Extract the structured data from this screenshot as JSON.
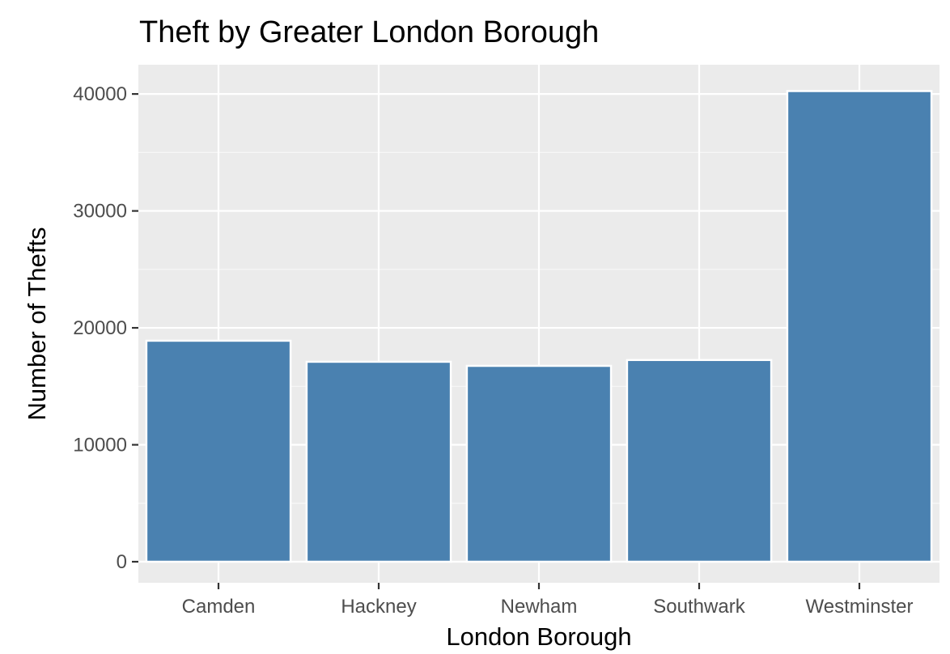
{
  "chart_data": {
    "type": "bar",
    "title": "Theft by Greater London Borough",
    "xlabel": "London Borough",
    "ylabel": "Number of Thefts",
    "categories": [
      "Camden",
      "Hackney",
      "Newham",
      "Southwark",
      "Westminster"
    ],
    "values": [
      18900,
      17100,
      16750,
      17250,
      40250
    ],
    "ylim": [
      -1800,
      42500
    ],
    "yticks": [
      0,
      10000,
      20000,
      30000,
      40000
    ],
    "ytick_labels": [
      "0",
      "10000",
      "20000",
      "30000",
      "40000"
    ],
    "grid": true,
    "legend": "none"
  },
  "colors": {
    "panel_background": "#EBEBEB",
    "grid_major": "#FFFFFF",
    "grid_minor": "#F7F7F7",
    "bar_fill": "#4A81B0",
    "bar_outline": "#FFFFFF",
    "tick_text": "#4D4D4D",
    "tick_mark": "#333333"
  }
}
